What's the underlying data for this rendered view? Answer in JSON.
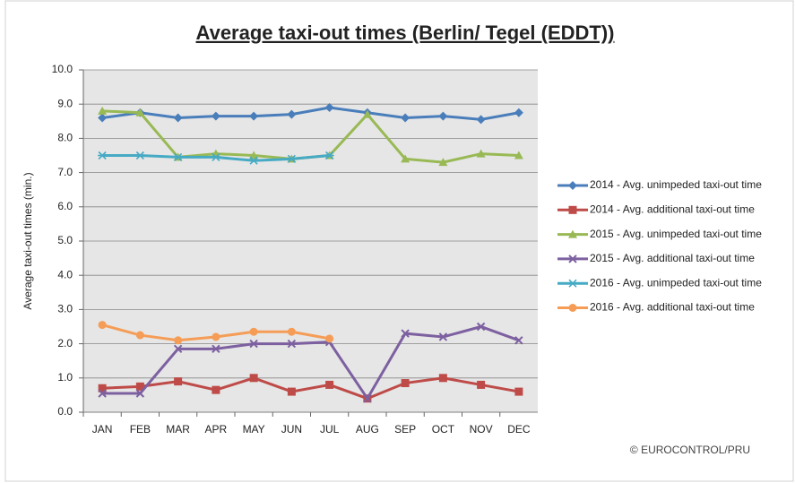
{
  "chart_data": {
    "type": "line",
    "title": "Average taxi-out times (Berlin/ Tegel (EDDT))",
    "y_label": "Average taxi-out times (min.)",
    "source": "© EUROCONTROL/PRU",
    "categories": [
      "JAN",
      "FEB",
      "MAR",
      "APR",
      "MAY",
      "JUN",
      "JUL",
      "AUG",
      "SEP",
      "OCT",
      "NOV",
      "DEC"
    ],
    "ylim": [
      0,
      10
    ],
    "yticks": [
      {
        "value": 0,
        "label": "0.0"
      },
      {
        "value": 1,
        "label": "1.0"
      },
      {
        "value": 2,
        "label": "2.0"
      },
      {
        "value": 3,
        "label": "3.0"
      },
      {
        "value": 4,
        "label": "4.0"
      },
      {
        "value": 5,
        "label": "5.0"
      },
      {
        "value": 6,
        "label": "6.0"
      },
      {
        "value": 7,
        "label": "7.0"
      },
      {
        "value": 8,
        "label": "8.0"
      },
      {
        "value": 9,
        "label": "9.0"
      },
      {
        "value": 10,
        "label": "10.0"
      }
    ],
    "grid": true,
    "legend": "right",
    "series": [
      {
        "name": "2014 - Avg. unimpeded taxi-out time",
        "color": "#4a7ebb",
        "marker": "diamond",
        "values": [
          8.6,
          8.75,
          8.6,
          8.65,
          8.65,
          8.7,
          8.9,
          8.75,
          8.6,
          8.65,
          8.55,
          8.75
        ]
      },
      {
        "name": "2014 - Avg. additional taxi-out time",
        "color": "#be4b48",
        "marker": "square",
        "values": [
          0.7,
          0.75,
          0.9,
          0.65,
          1.0,
          0.6,
          0.8,
          0.4,
          0.85,
          1.0,
          0.8,
          0.6
        ]
      },
      {
        "name": "2015 - Avg. unimpeded taxi-out time",
        "color": "#98b954",
        "marker": "triangle",
        "values": [
          8.8,
          8.75,
          7.45,
          7.55,
          7.5,
          7.4,
          7.5,
          8.7,
          7.4,
          7.3,
          7.55,
          7.5
        ]
      },
      {
        "name": "2015 - Avg. additional taxi-out time",
        "color": "#7d60a0",
        "marker": "x",
        "values": [
          0.55,
          0.55,
          1.85,
          1.85,
          2.0,
          2.0,
          2.05,
          0.4,
          2.3,
          2.2,
          2.5,
          2.1
        ]
      },
      {
        "name": "2016 - Avg. unimpeded taxi-out time",
        "color": "#46aac5",
        "marker": "star",
        "values": [
          7.5,
          7.5,
          7.45,
          7.45,
          7.35,
          7.4,
          7.5,
          null,
          null,
          null,
          null,
          null
        ]
      },
      {
        "name": "2016 - Avg. additional taxi-out time",
        "color": "#f59d56",
        "marker": "circle",
        "values": [
          2.55,
          2.25,
          2.1,
          2.2,
          2.35,
          2.35,
          2.15,
          null,
          null,
          null,
          null,
          null
        ]
      }
    ]
  }
}
